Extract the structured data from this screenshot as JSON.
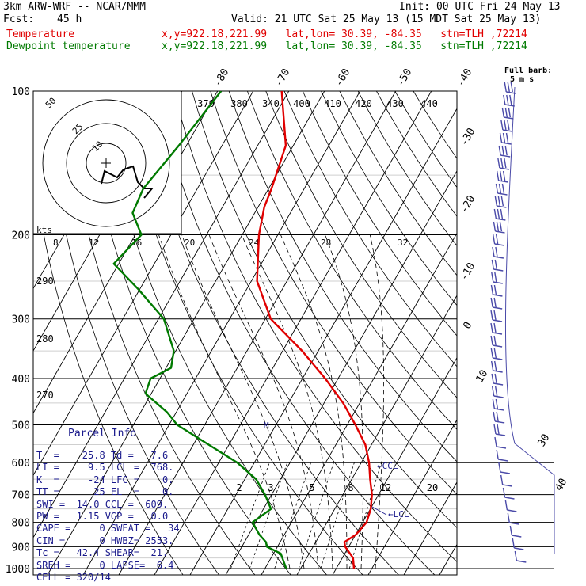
{
  "header": {
    "model": "3km ARW-WRF -- NCAR/MMM",
    "init": "Init: 00 UTC Fri 24 May 13",
    "fcst_label": "Fcst:",
    "fcst_value": "45 h",
    "valid": "Valid: 21 UTC Sat 25 May 13 (15 MDT Sat 25 May 13)",
    "temp_label": "Temperature",
    "temp_loc": "x,y=922.18,221.99   lat,lon= 30.39, -84.35   stn=TLH ,72214",
    "dew_label": "Dewpoint temperature",
    "dew_loc": "x,y=922.18,221.99   lat,lon= 30.39, -84.35   stn=TLH ,72214"
  },
  "colors": {
    "temperature": "#e00000",
    "dewpoint": "#007a00",
    "axes": "#000000",
    "text_blue": "#1a1a8c",
    "wind_barbs": "#4a4aa8"
  },
  "chart_data": {
    "type": "line",
    "yscale": "log-pressure",
    "pressure_ticks": [
      "100",
      "200",
      "300",
      "400",
      "500",
      "600",
      "700",
      "800",
      "900",
      "1000"
    ],
    "isotherm_labels": [
      "-80",
      "-70",
      "-60",
      "-50",
      "-40",
      "-30",
      "-20",
      "-10",
      "0",
      "10",
      "30",
      "40"
    ],
    "theta_labels": [
      "370",
      "380",
      "340",
      "400",
      "410",
      "420",
      "430",
      "440"
    ],
    "left_theta_labels": [
      "290",
      "280",
      "270"
    ],
    "mixing_ratio_labels": [
      "2",
      "3",
      "5",
      "8",
      "12",
      "20"
    ],
    "hodograph": {
      "unit_label": "kts",
      "ring_labels": [
        "50",
        "25",
        "10"
      ],
      "speed_labels": [
        "8",
        "12",
        "16",
        "20",
        "24",
        "28",
        "32"
      ]
    },
    "annotations": [
      "CCL",
      "LCL",
      "M"
    ],
    "full_barb_label": "Full barb:",
    "full_barb_value": "5 m s",
    "series": [
      {
        "name": "Temperature",
        "points": [
          [
            100,
            -72
          ],
          [
            130,
            -62
          ],
          [
            160,
            -59
          ],
          [
            175,
            -58
          ],
          [
            200,
            -55
          ],
          [
            250,
            -48
          ],
          [
            300,
            -38
          ],
          [
            350,
            -24
          ],
          [
            400,
            -13
          ],
          [
            450,
            -4
          ],
          [
            500,
            3
          ],
          [
            550,
            9
          ],
          [
            600,
            13
          ],
          [
            650,
            16
          ],
          [
            700,
            19
          ],
          [
            750,
            21
          ],
          [
            800,
            22
          ],
          [
            850,
            21
          ],
          [
            880,
            19
          ],
          [
            900,
            20
          ],
          [
            950,
            24
          ],
          [
            1000,
            26
          ]
        ]
      },
      {
        "name": "Dewpoint temperature",
        "points": [
          [
            100,
            -89
          ],
          [
            130,
            -92
          ],
          [
            160,
            -95
          ],
          [
            180,
            -94
          ],
          [
            200,
            -88
          ],
          [
            230,
            -91
          ],
          [
            260,
            -80
          ],
          [
            300,
            -68
          ],
          [
            350,
            -60
          ],
          [
            380,
            -58
          ],
          [
            400,
            -62
          ],
          [
            430,
            -61
          ],
          [
            470,
            -52
          ],
          [
            500,
            -47
          ],
          [
            550,
            -35
          ],
          [
            600,
            -24
          ],
          [
            650,
            -16
          ],
          [
            700,
            -11
          ],
          [
            750,
            -7
          ],
          [
            800,
            -10
          ],
          [
            850,
            -6
          ],
          [
            880,
            -3
          ],
          [
            900,
            -2
          ],
          [
            930,
            3
          ],
          [
            1000,
            7
          ]
        ]
      }
    ]
  },
  "parcel_info": {
    "title": "Parcel Info",
    "rows": [
      "T  =    25.8 Td =   7.6",
      "LI =     9.5 LCL =  768.",
      "K  =     -24 LFC =    0.",
      "TT =      25 EL  =    0.",
      "SWI =  14.0 CCL =  609.",
      "PW =   1.15 VGP =   0.0",
      "CAPE =     0 SWEAT =   34",
      "CIN =      0 HWBZ= 2553.",
      "Tc =   42.4 SHEAR=  21.",
      "SREH =     0 LAPSE=  6.4",
      "CELL = 320/14"
    ]
  }
}
